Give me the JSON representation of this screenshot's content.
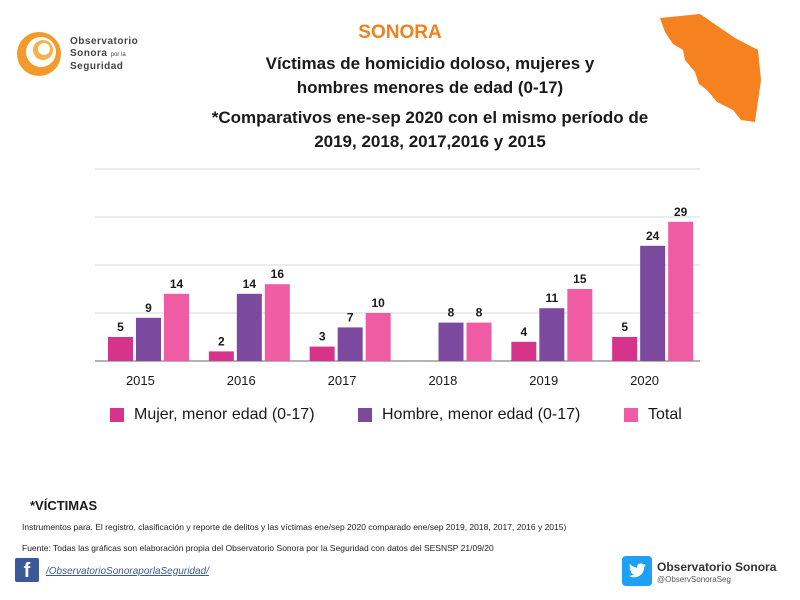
{
  "header": {
    "logo_line1": "Observatorio",
    "logo_line2": "Sonora",
    "logo_small": "por la",
    "logo_line3": "Seguridad",
    "state": "SONORA",
    "title_line1": "Víctimas de homicidio doloso, mujeres y",
    "title_line2": "hombres menores de edad (0-17)",
    "subtitle_line1": "*Comparativos ene-sep 2020 con el mismo período de",
    "subtitle_line2": "2019, 2018, 2017,2016 y 2015"
  },
  "colors": {
    "mujer": "#d6338a",
    "hombre": "#7b4a9e",
    "total": "#ef5ca3",
    "accent": "#f0821e",
    "map": "#f5821f"
  },
  "chart_data": {
    "type": "bar",
    "categories": [
      "2015",
      "2016",
      "2017",
      "2018",
      "2019",
      "2020"
    ],
    "series": [
      {
        "name": "Mujer, menor edad (0-17)",
        "values": [
          5,
          2,
          3,
          null,
          4,
          5
        ]
      },
      {
        "name": "Hombre, menor edad (0-17)",
        "values": [
          9,
          14,
          7,
          8,
          11,
          24
        ]
      },
      {
        "name": "Total",
        "values": [
          14,
          16,
          10,
          8,
          15,
          29
        ]
      }
    ],
    "ylim": [
      0,
      40
    ],
    "grid": true,
    "legend_position": "bottom"
  },
  "footer": {
    "victimas_label": "*VÍCTIMAS",
    "note1": "Instrumentos para. El registro, clasificación y reporte de delitos y las víctimas ene/sep 2020 comparado ene/sep 2019, 2018, 2017, 2016 y 2015)",
    "note2": "Fuente: Todas las gráficas son elaboración propia del Observatorio Sonora por la Seguridad con datos del SESNSP 21/09/20",
    "facebook_icon": "facebook-icon",
    "facebook_link": "/ObservatorioSonoraporlaSeguridad/",
    "twitter_icon": "twitter-icon",
    "twitter_name": "Observatorio Sonora",
    "twitter_handle": "@ObservSonoraSeg"
  }
}
